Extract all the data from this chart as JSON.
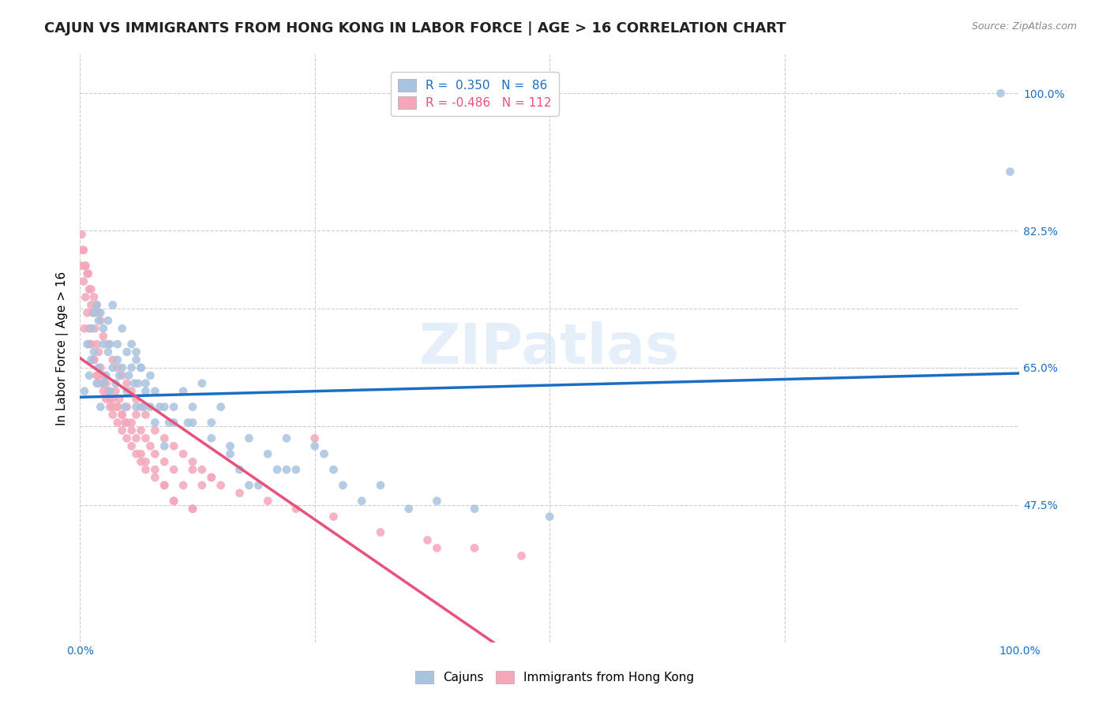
{
  "title": "CAJUN VS IMMIGRANTS FROM HONG KONG IN LABOR FORCE | AGE > 16 CORRELATION CHART",
  "source": "Source: ZipAtlas.com",
  "xlabel": "",
  "ylabel": "In Labor Force | Age > 16",
  "xlim": [
    0.0,
    1.0
  ],
  "ylim": [
    0.3,
    1.05
  ],
  "xticks": [
    0.0,
    0.25,
    0.5,
    0.75,
    1.0
  ],
  "xticklabels": [
    "0.0%",
    "",
    "",
    "",
    "100.0%"
  ],
  "ytick_positions": [
    0.475,
    0.575,
    0.65,
    0.725,
    0.825,
    1.0
  ],
  "ytick_labels": [
    "47.5%",
    "",
    "65.0%",
    "",
    "82.5%",
    "100.0%"
  ],
  "watermark": "ZIPatlas",
  "legend_r1": "R =  0.350   N =  86",
  "legend_r2": "R = -0.486   N = 112",
  "cajun_color": "#a8c4e0",
  "hk_color": "#f4a7b9",
  "cajun_line_color": "#1a6fc4",
  "hk_line_color": "#e8517a",
  "cajun_R": 0.35,
  "cajun_N": 86,
  "hk_R": -0.486,
  "hk_N": 112,
  "background_color": "#ffffff",
  "grid_color": "#cccccc",
  "title_fontsize": 13,
  "axis_label_fontsize": 11,
  "tick_fontsize": 10,
  "cajun_scatter_x": [
    0.005,
    0.008,
    0.01,
    0.012,
    0.015,
    0.018,
    0.02,
    0.022,
    0.025,
    0.025,
    0.028,
    0.03,
    0.032,
    0.032,
    0.035,
    0.038,
    0.04,
    0.042,
    0.045,
    0.048,
    0.05,
    0.052,
    0.055,
    0.058,
    0.06,
    0.06,
    0.062,
    0.065,
    0.068,
    0.07,
    0.075,
    0.08,
    0.085,
    0.09,
    0.095,
    0.1,
    0.11,
    0.115,
    0.12,
    0.13,
    0.14,
    0.15,
    0.16,
    0.17,
    0.18,
    0.19,
    0.2,
    0.21,
    0.22,
    0.23,
    0.25,
    0.26,
    0.27,
    0.28,
    0.3,
    0.32,
    0.35,
    0.38,
    0.42,
    0.5,
    0.012,
    0.015,
    0.018,
    0.02,
    0.022,
    0.025,
    0.03,
    0.035,
    0.04,
    0.045,
    0.05,
    0.055,
    0.06,
    0.065,
    0.07,
    0.075,
    0.08,
    0.09,
    0.1,
    0.12,
    0.14,
    0.16,
    0.18,
    0.22,
    0.98,
    0.99
  ],
  "cajun_scatter_y": [
    0.62,
    0.68,
    0.64,
    0.66,
    0.67,
    0.63,
    0.65,
    0.6,
    0.63,
    0.68,
    0.64,
    0.67,
    0.62,
    0.68,
    0.65,
    0.63,
    0.66,
    0.64,
    0.65,
    0.6,
    0.62,
    0.64,
    0.65,
    0.63,
    0.66,
    0.6,
    0.63,
    0.65,
    0.6,
    0.62,
    0.64,
    0.58,
    0.6,
    0.55,
    0.58,
    0.6,
    0.62,
    0.58,
    0.6,
    0.63,
    0.58,
    0.6,
    0.55,
    0.52,
    0.56,
    0.5,
    0.54,
    0.52,
    0.56,
    0.52,
    0.55,
    0.54,
    0.52,
    0.5,
    0.48,
    0.5,
    0.47,
    0.48,
    0.47,
    0.46,
    0.7,
    0.72,
    0.73,
    0.71,
    0.72,
    0.7,
    0.71,
    0.73,
    0.68,
    0.7,
    0.67,
    0.68,
    0.67,
    0.65,
    0.63,
    0.6,
    0.62,
    0.6,
    0.58,
    0.58,
    0.56,
    0.54,
    0.5,
    0.52,
    1.0,
    0.9
  ],
  "hk_scatter_x": [
    0.002,
    0.004,
    0.006,
    0.008,
    0.01,
    0.012,
    0.014,
    0.016,
    0.018,
    0.02,
    0.022,
    0.025,
    0.028,
    0.03,
    0.032,
    0.035,
    0.038,
    0.04,
    0.042,
    0.045,
    0.048,
    0.05,
    0.055,
    0.06,
    0.065,
    0.07,
    0.075,
    0.08,
    0.09,
    0.1,
    0.11,
    0.12,
    0.13,
    0.14,
    0.25,
    0.38,
    0.002,
    0.004,
    0.006,
    0.008,
    0.01,
    0.012,
    0.015,
    0.018,
    0.02,
    0.025,
    0.028,
    0.032,
    0.035,
    0.04,
    0.045,
    0.05,
    0.055,
    0.06,
    0.065,
    0.07,
    0.08,
    0.09,
    0.1,
    0.12,
    0.003,
    0.006,
    0.009,
    0.012,
    0.015,
    0.018,
    0.02,
    0.022,
    0.025,
    0.03,
    0.035,
    0.04,
    0.045,
    0.05,
    0.055,
    0.06,
    0.065,
    0.07,
    0.08,
    0.09,
    0.1,
    0.11,
    0.12,
    0.13,
    0.14,
    0.15,
    0.17,
    0.2,
    0.23,
    0.27,
    0.32,
    0.37,
    0.42,
    0.47,
    0.005,
    0.01,
    0.015,
    0.02,
    0.025,
    0.03,
    0.035,
    0.04,
    0.045,
    0.05,
    0.055,
    0.06,
    0.065,
    0.07,
    0.08,
    0.09,
    0.1,
    0.12
  ],
  "hk_scatter_y": [
    0.82,
    0.8,
    0.78,
    0.77,
    0.75,
    0.73,
    0.72,
    0.7,
    0.68,
    0.67,
    0.65,
    0.64,
    0.63,
    0.62,
    0.61,
    0.6,
    0.62,
    0.6,
    0.61,
    0.59,
    0.58,
    0.6,
    0.58,
    0.59,
    0.57,
    0.56,
    0.55,
    0.54,
    0.53,
    0.52,
    0.5,
    0.52,
    0.5,
    0.51,
    0.56,
    0.42,
    0.78,
    0.76,
    0.74,
    0.72,
    0.7,
    0.68,
    0.66,
    0.64,
    0.63,
    0.62,
    0.61,
    0.6,
    0.59,
    0.58,
    0.57,
    0.56,
    0.55,
    0.54,
    0.53,
    0.52,
    0.51,
    0.5,
    0.48,
    0.47,
    0.8,
    0.78,
    0.77,
    0.75,
    0.74,
    0.73,
    0.72,
    0.71,
    0.69,
    0.68,
    0.66,
    0.65,
    0.64,
    0.63,
    0.62,
    0.61,
    0.6,
    0.59,
    0.57,
    0.56,
    0.55,
    0.54,
    0.53,
    0.52,
    0.51,
    0.5,
    0.49,
    0.48,
    0.47,
    0.46,
    0.44,
    0.43,
    0.42,
    0.41,
    0.7,
    0.68,
    0.66,
    0.64,
    0.63,
    0.62,
    0.61,
    0.6,
    0.59,
    0.58,
    0.57,
    0.56,
    0.54,
    0.53,
    0.52,
    0.5,
    0.48,
    0.47
  ]
}
